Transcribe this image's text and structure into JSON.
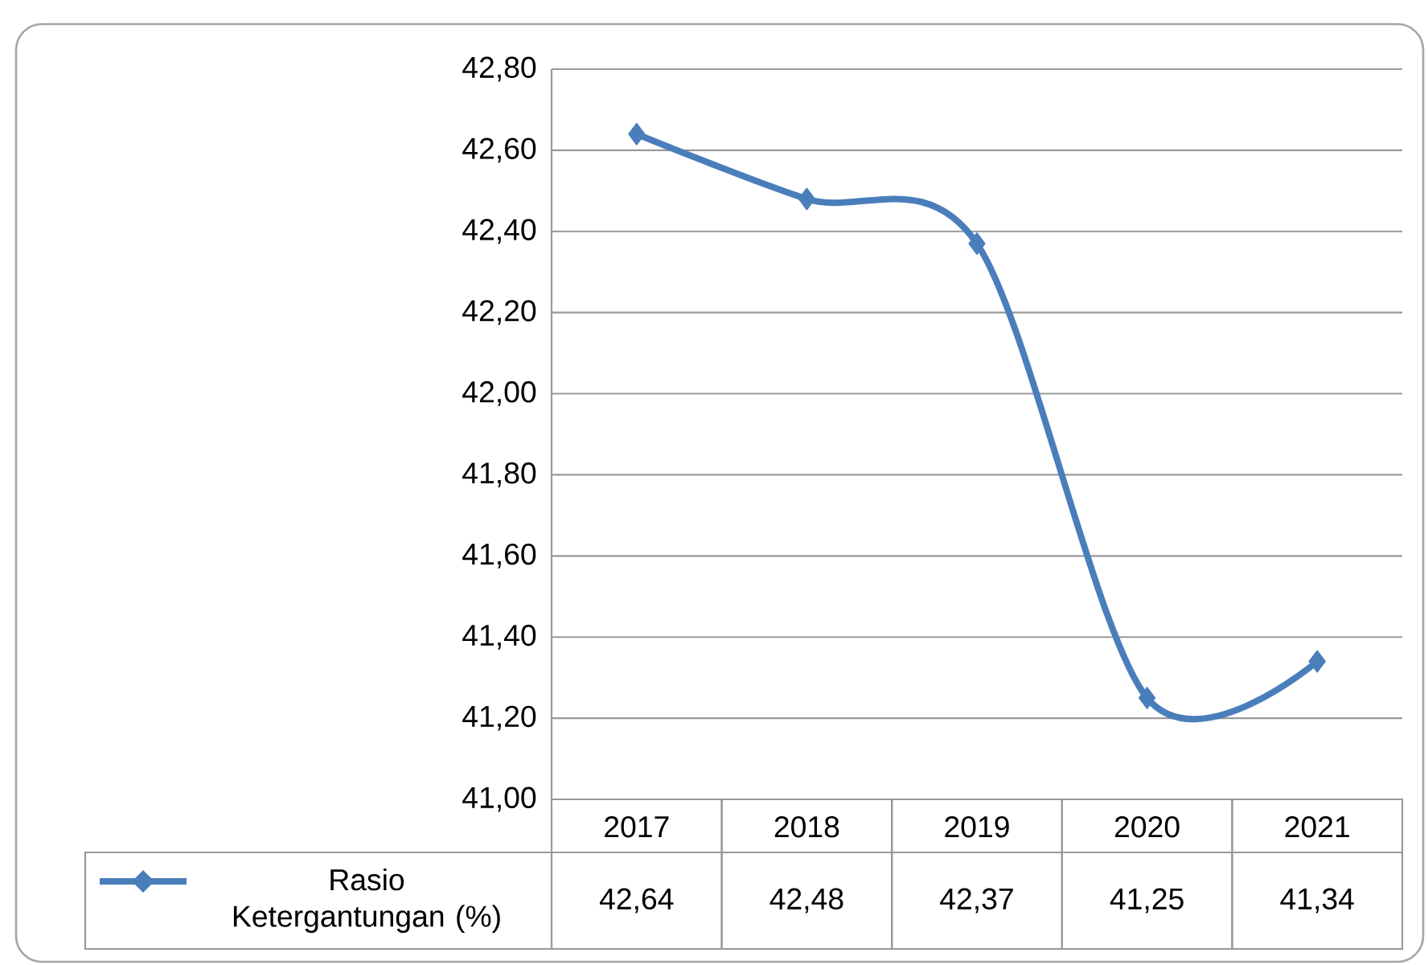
{
  "chart_data": {
    "type": "line",
    "categories": [
      "2017",
      "2018",
      "2019",
      "2020",
      "2021"
    ],
    "series": [
      {
        "name": "Rasio Ketergantungan (%)",
        "color": "#4a7ebb",
        "values": [
          42.64,
          42.48,
          42.37,
          41.25,
          41.34
        ],
        "value_labels": [
          "42,64",
          "42,48",
          "42,37",
          "41,25",
          "41,34"
        ]
      }
    ],
    "ylim": [
      41,
      42.8
    ],
    "yticks": [
      {
        "value": 41,
        "label": "41,00"
      },
      {
        "value": 41.2,
        "label": "41,20"
      },
      {
        "value": 41.4,
        "label": "41,40"
      },
      {
        "value": 41.6,
        "label": "41,60"
      },
      {
        "value": 41.8,
        "label": "41,80"
      },
      {
        "value": 42,
        "label": "42,00"
      },
      {
        "value": 42.2,
        "label": "42,20"
      },
      {
        "value": 42.4,
        "label": "42,40"
      },
      {
        "value": 42.6,
        "label": "42,60"
      },
      {
        "value": 42.8,
        "label": "42,80"
      }
    ],
    "grid": "y",
    "marker": "diamond",
    "line_style": "solid",
    "legend": "bottom left"
  }
}
